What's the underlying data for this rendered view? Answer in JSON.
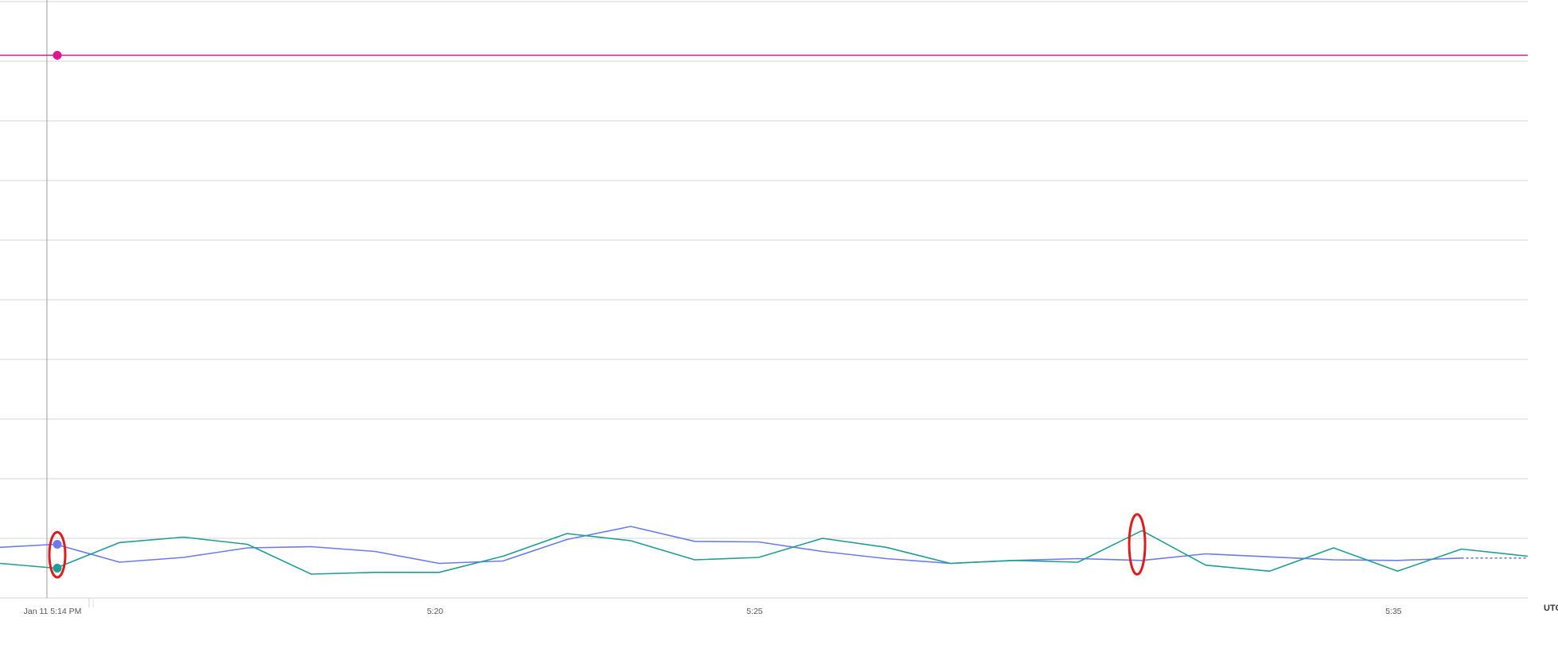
{
  "chart_data": {
    "type": "line",
    "grid": true,
    "legend": "none",
    "x_ticks": [
      {
        "label": "Jan 11 5:14 PM",
        "minute": 14
      },
      {
        "label": "5:20",
        "minute": 20
      },
      {
        "label": "5:25",
        "minute": 25
      },
      {
        "label": "5:35",
        "minute": 35
      }
    ],
    "x_end_label": "UTC",
    "xlim_minutes": [
      13.1,
      36.9
    ],
    "hover_minute": 13.9,
    "y_gridlines": 10,
    "ylim": [
      0,
      10
    ],
    "series": [
      {
        "color": "#e0168f",
        "points": [
          [
            13.1,
            9.1
          ],
          [
            36.9,
            9.1
          ]
        ],
        "marker_at": 14.0
      },
      {
        "color": "#6b7bec",
        "points": [
          [
            13.1,
            0.85
          ],
          [
            14.0,
            0.9
          ],
          [
            15.0,
            0.6
          ],
          [
            16.0,
            0.68
          ],
          [
            17.0,
            0.84
          ],
          [
            18.0,
            0.86
          ],
          [
            19.0,
            0.78
          ],
          [
            20.0,
            0.58
          ],
          [
            21.0,
            0.62
          ],
          [
            22.0,
            0.98
          ],
          [
            23.0,
            1.2
          ],
          [
            24.0,
            0.95
          ],
          [
            25.0,
            0.94
          ],
          [
            26.0,
            0.78
          ],
          [
            27.0,
            0.66
          ],
          [
            28.0,
            0.58
          ],
          [
            29.0,
            0.63
          ],
          [
            30.0,
            0.66
          ],
          [
            31.0,
            0.63
          ],
          [
            32.0,
            0.74
          ],
          [
            33.0,
            0.69
          ],
          [
            34.0,
            0.64
          ],
          [
            35.0,
            0.63
          ],
          [
            36.0,
            0.67
          ]
        ],
        "dashed_tail": [
          [
            36.0,
            0.67
          ],
          [
            36.9,
            0.67
          ]
        ],
        "marker_at": 14.0
      },
      {
        "color": "#1e9e94",
        "points": [
          [
            13.1,
            0.58
          ],
          [
            14.0,
            0.5
          ],
          [
            15.0,
            0.93
          ],
          [
            16.0,
            1.02
          ],
          [
            17.0,
            0.9
          ],
          [
            18.0,
            0.4
          ],
          [
            19.0,
            0.43
          ],
          [
            20.0,
            0.43
          ],
          [
            21.0,
            0.7
          ],
          [
            22.0,
            1.08
          ],
          [
            23.0,
            0.96
          ],
          [
            24.0,
            0.64
          ],
          [
            25.0,
            0.68
          ],
          [
            26.0,
            1.0
          ],
          [
            27.0,
            0.85
          ],
          [
            28.0,
            0.58
          ],
          [
            29.0,
            0.63
          ],
          [
            30.0,
            0.6
          ],
          [
            31.0,
            1.13
          ],
          [
            32.0,
            0.55
          ],
          [
            33.0,
            0.45
          ],
          [
            34.0,
            0.84
          ],
          [
            35.0,
            0.45
          ],
          [
            36.0,
            0.82
          ],
          [
            36.9,
            0.7
          ]
        ],
        "marker_at": 14.0
      }
    ],
    "annotations": [
      {
        "kind": "red-ellipse-highlight",
        "minute": 14.0,
        "y_range": [
          0.4,
          1.05
        ]
      },
      {
        "kind": "red-ellipse-highlight",
        "minute": 30.9,
        "y_range": [
          0.45,
          1.35
        ]
      }
    ]
  }
}
